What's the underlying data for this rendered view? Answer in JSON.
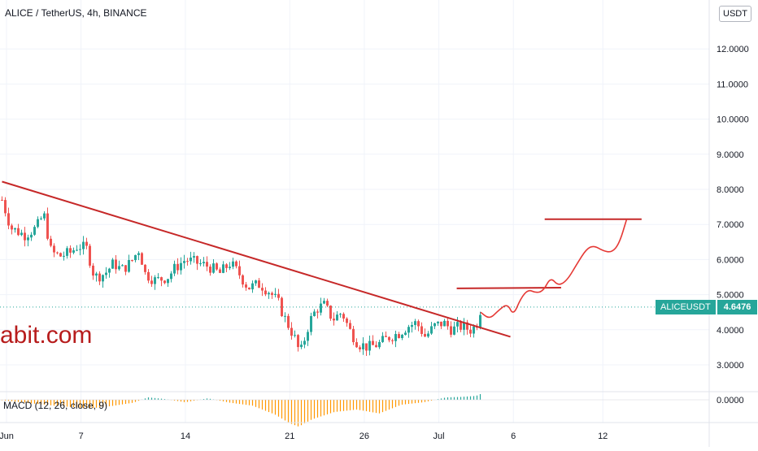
{
  "header": {
    "title": "ALICE / TetherUS, 4h, BINANCE",
    "currency_button": "USDT"
  },
  "watermark": "abit.com",
  "price_label": {
    "symbol": "ALICEUSDT",
    "value": "4.6476"
  },
  "macd": {
    "label": "MACD (12, 26, close, 9)",
    "zero_tick": "0.0000"
  },
  "colors": {
    "up": "#26a69a",
    "down": "#ef5350",
    "annotation": "#c62828",
    "macd_pos": "#26a69a",
    "macd_neg": "#ff9800",
    "grid": "#f0f3fa"
  },
  "chart_data": {
    "type": "candlestick",
    "title": "ALICE / TetherUS, 4h, BINANCE",
    "y_ticks": [
      "3.0000",
      "4.0000",
      "5.0000",
      "6.0000",
      "7.0000",
      "8.0000",
      "9.0000",
      "10.0000",
      "11.0000",
      "12.0000"
    ],
    "y_tick_values": [
      3,
      4,
      5,
      6,
      7,
      8,
      9,
      10,
      11,
      12
    ],
    "ylim": [
      2.2,
      12.9
    ],
    "x_ticks": [
      {
        "label": "Jun",
        "day": 2
      },
      {
        "label": "7",
        "day": 7
      },
      {
        "label": "14",
        "day": 14
      },
      {
        "label": "21",
        "day": 21
      },
      {
        "label": "26",
        "day": 26
      },
      {
        "label": "Jul",
        "day": 31
      },
      {
        "label": "6",
        "day": 36
      },
      {
        "label": "12",
        "day": 42
      }
    ],
    "close_path": [
      [
        1.7,
        7.7
      ],
      [
        2.3,
        6.9
      ],
      [
        3.2,
        6.7
      ],
      [
        4.0,
        6.9
      ],
      [
        4.5,
        7.3
      ],
      [
        5.0,
        6.2
      ],
      [
        5.6,
        6.1
      ],
      [
        6.3,
        6.2
      ],
      [
        6.8,
        6.4
      ],
      [
        7.4,
        6.3
      ],
      [
        7.9,
        5.5
      ],
      [
        8.6,
        5.6
      ],
      [
        9.2,
        5.9
      ],
      [
        9.7,
        5.7
      ],
      [
        10.3,
        5.9
      ],
      [
        10.9,
        6.3
      ],
      [
        11.3,
        5.6
      ],
      [
        12.0,
        5.4
      ],
      [
        12.8,
        5.5
      ],
      [
        13.4,
        5.8
      ],
      [
        14.0,
        6.0
      ],
      [
        14.8,
        5.9
      ],
      [
        15.6,
        5.8
      ],
      [
        16.3,
        5.6
      ],
      [
        17.0,
        5.9
      ],
      [
        17.6,
        5.6
      ],
      [
        18.2,
        5.2
      ],
      [
        19.0,
        5.3
      ],
      [
        19.6,
        5.1
      ],
      [
        20.2,
        4.8
      ],
      [
        20.7,
        4.3
      ],
      [
        21.3,
        3.8
      ],
      [
        21.7,
        3.3
      ],
      [
        22.3,
        4.2
      ],
      [
        22.8,
        4.6
      ],
      [
        23.3,
        4.7
      ],
      [
        23.9,
        4.3
      ],
      [
        24.5,
        4.5
      ],
      [
        25.0,
        4.0
      ],
      [
        25.6,
        3.6
      ],
      [
        26.3,
        3.5
      ],
      [
        27.0,
        3.6
      ],
      [
        27.7,
        3.8
      ],
      [
        28.3,
        3.9
      ],
      [
        28.9,
        4.1
      ],
      [
        29.5,
        4.2
      ],
      [
        30.1,
        3.8
      ],
      [
        30.7,
        4.1
      ],
      [
        31.3,
        4.2
      ],
      [
        31.9,
        4.0
      ],
      [
        32.5,
        4.1
      ],
      [
        33.1,
        4.0
      ],
      [
        33.5,
        4.1
      ],
      [
        33.8,
        4.6
      ]
    ],
    "macd_path": [
      [
        1.7,
        -0.01
      ],
      [
        3.0,
        -0.05
      ],
      [
        4.5,
        -0.1
      ],
      [
        6.0,
        -0.14
      ],
      [
        7.5,
        -0.18
      ],
      [
        9.0,
        -0.13
      ],
      [
        10.5,
        -0.06
      ],
      [
        11.5,
        0.05
      ],
      [
        12.5,
        0.02
      ],
      [
        14.0,
        -0.05
      ],
      [
        15.5,
        0.03
      ],
      [
        17.0,
        -0.06
      ],
      [
        18.5,
        -0.12
      ],
      [
        20.0,
        -0.3
      ],
      [
        21.0,
        -0.48
      ],
      [
        21.6,
        -0.55
      ],
      [
        22.5,
        -0.4
      ],
      [
        24.0,
        -0.25
      ],
      [
        25.5,
        -0.2
      ],
      [
        27.0,
        -0.28
      ],
      [
        28.5,
        -0.1
      ],
      [
        30.0,
        -0.05
      ],
      [
        31.5,
        0.05
      ],
      [
        32.5,
        0.06
      ],
      [
        33.5,
        0.08
      ],
      [
        33.8,
        0.12
      ]
    ],
    "annotations": {
      "trendline": {
        "from": [
          1.7,
          8.22
        ],
        "to": [
          35.8,
          3.8
        ]
      },
      "resistance_1": {
        "from": [
          32.2,
          5.18
        ],
        "to": [
          39.2,
          5.2
        ]
      },
      "resistance_2": {
        "from": [
          38.1,
          7.15
        ],
        "to": [
          44.6,
          7.15
        ]
      },
      "projection": [
        [
          33.8,
          4.5
        ],
        [
          34.4,
          4.3
        ],
        [
          35.0,
          4.55
        ],
        [
          35.6,
          4.75
        ],
        [
          36.0,
          4.4
        ],
        [
          36.5,
          4.9
        ],
        [
          37.0,
          5.15
        ],
        [
          37.5,
          5.05
        ],
        [
          38.0,
          5.1
        ],
        [
          38.5,
          5.5
        ],
        [
          39.0,
          5.25
        ],
        [
          39.6,
          5.4
        ],
        [
          40.3,
          5.9
        ],
        [
          40.9,
          6.3
        ],
        [
          41.4,
          6.4
        ],
        [
          42.0,
          6.25
        ],
        [
          42.6,
          6.2
        ],
        [
          43.1,
          6.45
        ],
        [
          43.6,
          7.15
        ]
      ]
    },
    "last_price": 4.6476,
    "grid": true
  }
}
